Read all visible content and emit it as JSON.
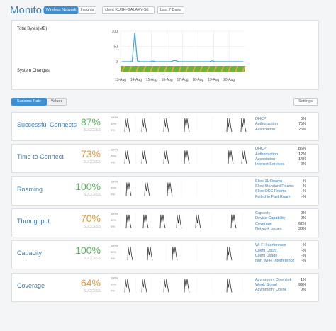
{
  "header": {
    "title": "Monitor",
    "tabs": [
      "Wireless Network",
      "Insights"
    ],
    "client": "client KUSH-GALAXY-S6",
    "period": "Last 7 Days"
  },
  "traffic": {
    "label": "Total Bytes(MB)",
    "ylim": [
      0,
      100
    ],
    "yticks": [
      0,
      50,
      100
    ],
    "dates": [
      "13-Aug",
      "14-Aug",
      "15-Aug",
      "16-Aug",
      "17-Aug",
      "18-Aug",
      "19-Aug",
      "20-Aug"
    ],
    "values": [
      0,
      0,
      0,
      0,
      1,
      95,
      3,
      0,
      0,
      0,
      0,
      0,
      2,
      0,
      0,
      0,
      0,
      0,
      0,
      0,
      4,
      3,
      0,
      0,
      0,
      0,
      0,
      0,
      0,
      0,
      0,
      0,
      0,
      0,
      0,
      3,
      0,
      0,
      0,
      0,
      0,
      0,
      0,
      0,
      0,
      0,
      0,
      0
    ],
    "system_changes_label": "System Changes"
  },
  "toolbar": {
    "toggle": [
      "Success Rate",
      "Values"
    ],
    "settings": "Settings"
  },
  "rows": [
    {
      "name": "Successful Connects",
      "rate": "87%",
      "status": "good",
      "caption": "SUCCESS",
      "axis": [
        "100%",
        "50%",
        "0%"
      ],
      "reasons": [
        {
          "label": "DHCP",
          "value": "0%"
        },
        {
          "label": "Authorization",
          "value": "75%"
        },
        {
          "label": "Association",
          "value": "25%"
        }
      ]
    },
    {
      "name": "Time to Connect",
      "rate": "73%",
      "status": "warn",
      "caption": "SUCCESS",
      "axis": [
        "100%",
        "50%",
        "0%"
      ],
      "reasons": [
        {
          "label": "DHCP",
          "value": "86%"
        },
        {
          "label": "Authorization",
          "value": "12%"
        },
        {
          "label": "Association",
          "value": "14%"
        },
        {
          "label": "Internet Services",
          "value": "0%"
        }
      ]
    },
    {
      "name": "Roaming",
      "rate": "100%",
      "status": "good",
      "caption": "SUCCESS",
      "axis": [
        "100%",
        "50%",
        "0%"
      ],
      "reasons": [
        {
          "label": "Slow 11rRoams",
          "value": "-%"
        },
        {
          "label": "Slow Standard Roams",
          "value": "-%"
        },
        {
          "label": "Slow OKC Roams",
          "value": "-%"
        },
        {
          "label": "Failed to Fast Roam",
          "value": "-%"
        }
      ]
    },
    {
      "name": "Throughput",
      "rate": "70%",
      "status": "warn",
      "caption": "SUCCESS",
      "axis": [
        "100%",
        "50%",
        "0%"
      ],
      "reasons": [
        {
          "label": "Capacity",
          "value": "0%"
        },
        {
          "label": "Device Capability",
          "value": "0%"
        },
        {
          "label": "Coverage",
          "value": "62%"
        },
        {
          "label": "Network Issues",
          "value": "38%"
        }
      ]
    },
    {
      "name": "Capacity",
      "rate": "100%",
      "status": "good",
      "caption": "SUCCESS",
      "axis": [
        "100%",
        "50%",
        "0%"
      ],
      "reasons": [
        {
          "label": "Wi-Fi Interference",
          "value": "-%"
        },
        {
          "label": "Client Count",
          "value": "-%"
        },
        {
          "label": "Client Usage",
          "value": "-%"
        },
        {
          "label": "Non Wi-Fi Interference",
          "value": "-%"
        }
      ]
    },
    {
      "name": "Coverage",
      "rate": "64%",
      "status": "warn",
      "caption": "SUCCESS",
      "axis": [
        "100%",
        "50%",
        "0%"
      ],
      "reasons": [
        {
          "label": "Asymmetry Downlink",
          "value": "1%"
        },
        {
          "label": "Weak Signal",
          "value": "99%"
        },
        {
          "label": "Asymmetry Uplink",
          "value": "0%"
        }
      ]
    }
  ]
}
